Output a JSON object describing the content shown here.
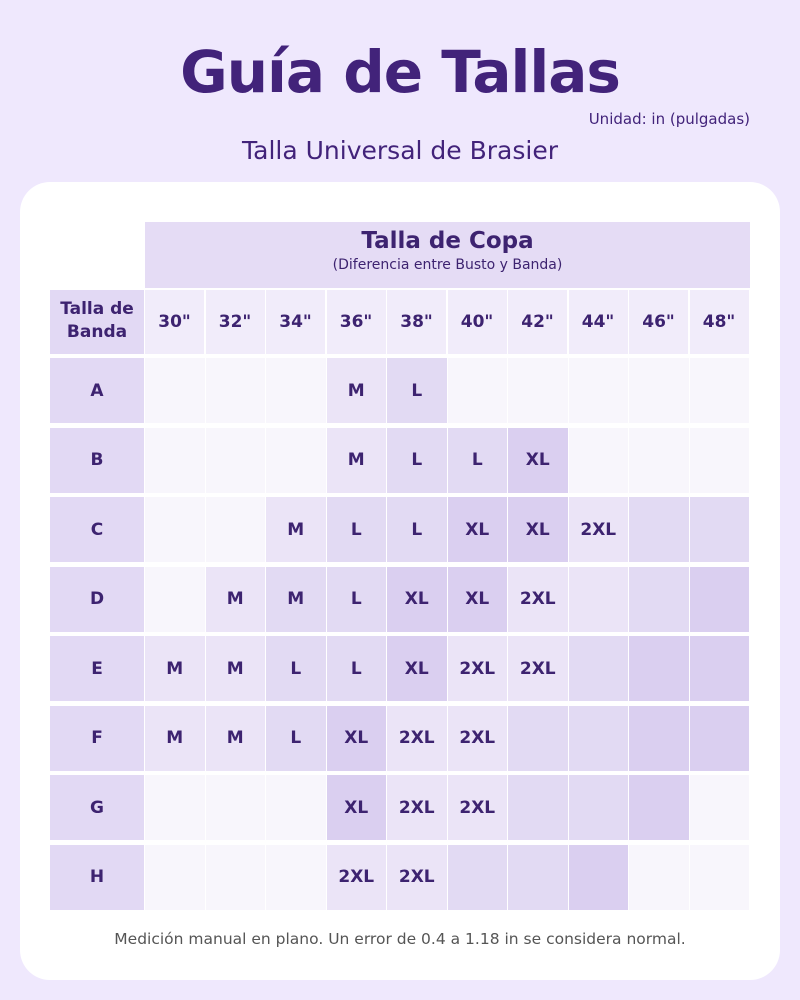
{
  "title": "Guía de Tallas",
  "unit": "Unidad: in (pulgadas)",
  "subtitle": "Talla Universal de Brasier",
  "table": {
    "cup_header": "Talla de Copa",
    "cup_subheader": "(Diferencia entre Busto y Banda)",
    "band_header": "Talla de Banda",
    "columns": [
      "30\"",
      "32\"",
      "34\"",
      "36\"",
      "38\"",
      "40\"",
      "42\"",
      "44\"",
      "46\"",
      "48\""
    ],
    "shade_colors": [
      "#f8f6fc",
      "#ebe4f7",
      "#e2daf3",
      "#dacff0"
    ],
    "rows": [
      {
        "label": "A",
        "cells": [
          "",
          "",
          "",
          "M",
          "L",
          "",
          "",
          "",
          "",
          ""
        ],
        "shades": [
          0,
          0,
          0,
          1,
          2,
          0,
          0,
          0,
          0,
          0
        ]
      },
      {
        "label": "B",
        "cells": [
          "",
          "",
          "",
          "M",
          "L",
          "L",
          "XL",
          "",
          "",
          ""
        ],
        "shades": [
          0,
          0,
          0,
          1,
          2,
          2,
          3,
          0,
          0,
          0
        ]
      },
      {
        "label": "C",
        "cells": [
          "",
          "",
          "M",
          "L",
          "L",
          "XL",
          "XL",
          "2XL",
          "",
          ""
        ],
        "shades": [
          0,
          0,
          1,
          2,
          2,
          3,
          3,
          1,
          2,
          2
        ]
      },
      {
        "label": "D",
        "cells": [
          "",
          "M",
          "M",
          "L",
          "XL",
          "XL",
          "2XL",
          "",
          "",
          ""
        ],
        "shades": [
          0,
          1,
          2,
          2,
          3,
          3,
          1,
          1,
          2,
          3
        ]
      },
      {
        "label": "E",
        "cells": [
          "M",
          "M",
          "L",
          "L",
          "XL",
          "2XL",
          "2XL",
          "",
          "",
          ""
        ],
        "shades": [
          1,
          1,
          2,
          2,
          3,
          1,
          1,
          2,
          3,
          3
        ]
      },
      {
        "label": "F",
        "cells": [
          "M",
          "M",
          "L",
          "XL",
          "2XL",
          "2XL",
          "",
          "",
          "",
          ""
        ],
        "shades": [
          1,
          1,
          2,
          3,
          1,
          1,
          2,
          2,
          3,
          3
        ]
      },
      {
        "label": "G",
        "cells": [
          "",
          "",
          "",
          "XL",
          "2XL",
          "2XL",
          "",
          "",
          "",
          ""
        ],
        "shades": [
          0,
          0,
          0,
          3,
          1,
          1,
          2,
          2,
          3,
          0
        ]
      },
      {
        "label": "H",
        "cells": [
          "",
          "",
          "",
          "2XL",
          "2XL",
          "",
          "",
          "",
          "",
          ""
        ],
        "shades": [
          0,
          0,
          0,
          1,
          1,
          2,
          2,
          3,
          0,
          0
        ]
      }
    ]
  },
  "footnote": "Medición manual en plano. Un error de 0.4 a 1.18 in se considera normal."
}
